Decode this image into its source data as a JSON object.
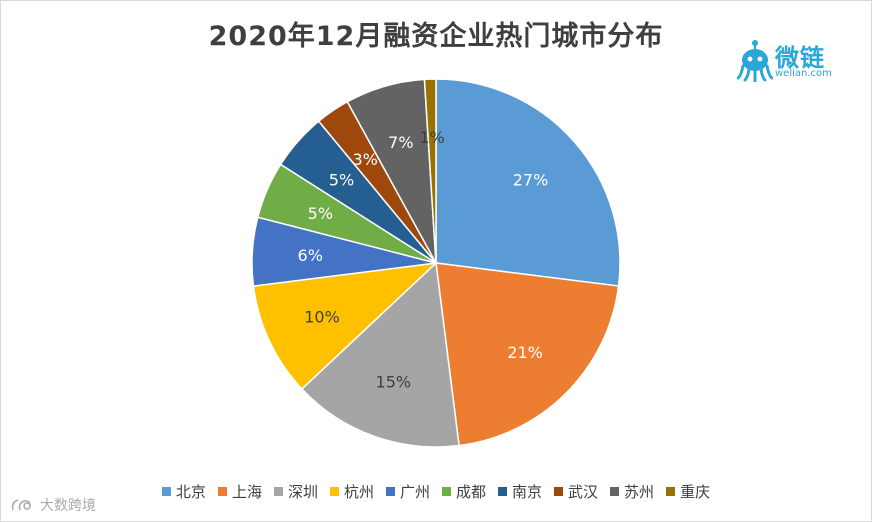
{
  "header": {
    "title": "2020年12月融资企业热门城市分布"
  },
  "logo": {
    "name": "微链",
    "sub": "welian.com",
    "color": "#2aa7d8"
  },
  "watermark": {
    "text": "大数跨境"
  },
  "chart_data": {
    "type": "pie",
    "title": "2020年12月融资企业热门城市分布",
    "legend_position": "bottom",
    "start_angle_deg": 0,
    "direction": "clockwise",
    "slices": [
      {
        "label": "北京",
        "value": 27,
        "display": "27%",
        "color": "#5b9bd5",
        "text_color": "#ffffff"
      },
      {
        "label": "上海",
        "value": 21,
        "display": "21%",
        "color": "#ed7d31",
        "text_color": "#ffffff"
      },
      {
        "label": "深圳",
        "value": 15,
        "display": "15%",
        "color": "#a5a5a5",
        "text_color": "#404040"
      },
      {
        "label": "杭州",
        "value": 10,
        "display": "10%",
        "color": "#ffc000",
        "text_color": "#404040"
      },
      {
        "label": "广州",
        "value": 6,
        "display": "6%",
        "color": "#4472c4",
        "text_color": "#ffffff"
      },
      {
        "label": "成都",
        "value": 5,
        "display": "5%",
        "color": "#70ad47",
        "text_color": "#ffffff"
      },
      {
        "label": "南京",
        "value": 5,
        "display": "5%",
        "color": "#255e91",
        "text_color": "#ffffff"
      },
      {
        "label": "武汉",
        "value": 3,
        "display": "3%",
        "color": "#9e480e",
        "text_color": "#ffffff"
      },
      {
        "label": "苏州",
        "value": 7,
        "display": "7%",
        "color": "#636363",
        "text_color": "#ffffff"
      },
      {
        "label": "重庆",
        "value": 1,
        "display": "1%",
        "color": "#997300",
        "text_color": "#404040"
      }
    ]
  }
}
